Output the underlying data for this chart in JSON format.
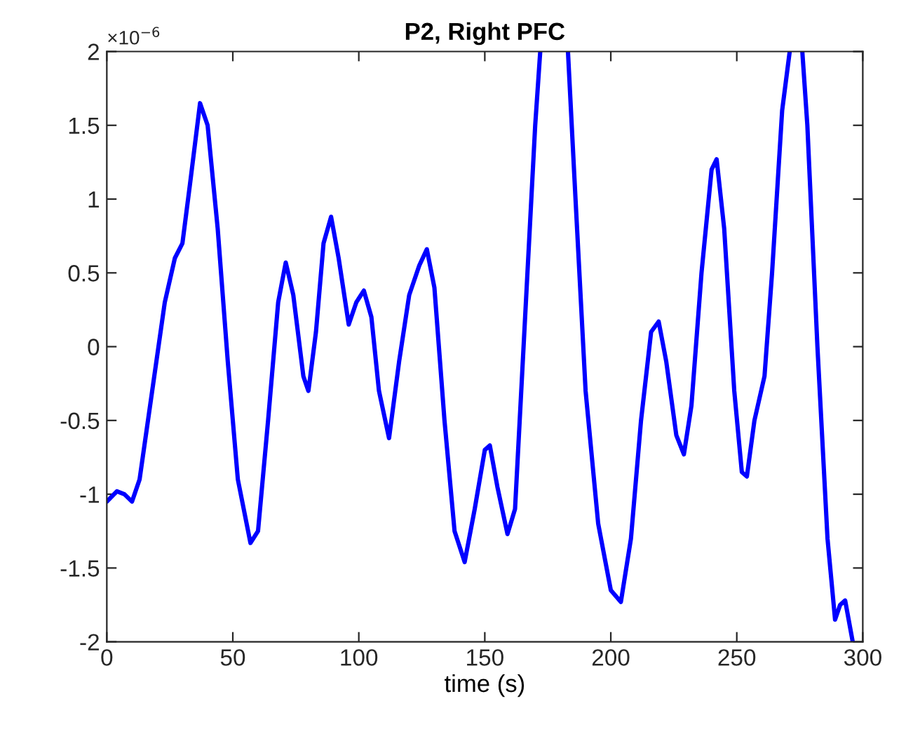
{
  "chart_data": {
    "type": "line",
    "title": "P2, Right PFC",
    "xlabel": "time (s)",
    "annotations": [
      "×10$^{−6}$"
    ],
    "xlim": [
      0,
      300
    ],
    "xticks": [
      0,
      50,
      100,
      150,
      200,
      250,
      300
    ],
    "ylim": [
      -2,
      2
    ],
    "yticks": [
      -2,
      -1.5,
      -1,
      -0.5,
      0,
      0.5,
      1,
      1.5,
      2
    ],
    "grid": false,
    "legend": false,
    "marker": "none",
    "line_style": "solid",
    "series": [
      {
        "color": "#0000ff",
        "x": [
          0,
          4,
          7,
          10,
          13,
          18,
          23,
          27,
          30,
          33,
          37,
          40,
          44,
          48,
          52,
          57,
          60,
          64,
          68,
          71,
          74,
          78,
          80,
          83,
          86,
          89,
          92,
          96,
          99,
          102,
          105,
          108,
          112,
          116,
          120,
          124,
          127,
          130,
          134,
          138,
          142,
          146,
          150,
          152,
          155,
          159,
          162,
          166,
          170,
          172,
          177,
          183,
          186,
          190,
          195,
          200,
          204,
          208,
          212,
          216,
          219,
          222,
          226,
          229,
          232,
          236,
          240,
          242,
          245,
          249,
          252,
          254,
          257,
          261,
          264,
          268,
          271,
          273,
          276,
          278,
          282,
          286,
          289,
          291,
          293,
          296
        ],
        "values": [
          -1.05,
          -0.98,
          -1.0,
          -1.05,
          -0.9,
          -0.3,
          0.3,
          0.6,
          0.7,
          1.1,
          1.65,
          1.5,
          0.8,
          -0.1,
          -0.9,
          -1.33,
          -1.25,
          -0.5,
          0.3,
          0.57,
          0.35,
          -0.2,
          -0.3,
          0.1,
          0.7,
          0.88,
          0.6,
          0.15,
          0.3,
          0.38,
          0.2,
          -0.3,
          -0.62,
          -0.1,
          0.35,
          0.55,
          0.66,
          0.4,
          -0.5,
          -1.25,
          -1.46,
          -1.1,
          -0.7,
          -0.67,
          -0.95,
          -1.27,
          -1.1,
          0.2,
          1.5,
          2.0,
          null,
          2.0,
          1.0,
          -0.3,
          -1.2,
          -1.65,
          -1.73,
          -1.3,
          -0.5,
          0.1,
          0.17,
          -0.1,
          -0.6,
          -0.73,
          -0.4,
          0.5,
          1.2,
          1.27,
          0.8,
          -0.3,
          -0.85,
          -0.88,
          -0.5,
          -0.2,
          0.5,
          1.6,
          2.0,
          null,
          2.0,
          1.5,
          0.0,
          -1.3,
          -1.85,
          -1.75,
          -1.72,
          -2.0
        ]
      }
    ]
  }
}
